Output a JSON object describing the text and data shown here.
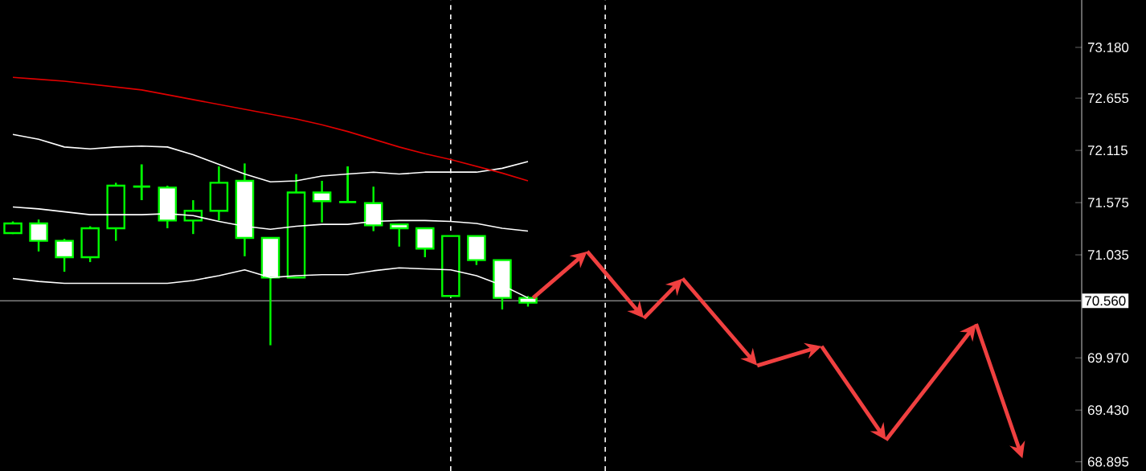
{
  "chart_data": {
    "type": "candlestick",
    "categories": [
      null,
      null,
      null,
      null,
      null,
      null,
      null,
      null,
      null,
      null,
      null,
      null,
      null,
      null,
      null,
      null,
      null,
      null,
      null,
      null,
      null,
      null,
      null,
      null,
      null,
      null,
      null,
      null,
      null,
      null,
      null,
      null,
      null,
      null,
      null,
      null,
      null,
      null,
      null,
      null,
      null,
      null
    ],
    "ohlc": [
      [
        71.26,
        71.38,
        71.25,
        71.36
      ],
      [
        71.36,
        71.4,
        71.07,
        71.18
      ],
      [
        71.18,
        71.2,
        70.86,
        71.01
      ],
      [
        71.01,
        71.33,
        70.96,
        71.31
      ],
      [
        71.31,
        71.78,
        71.18,
        71.75
      ],
      [
        71.74,
        71.97,
        71.6,
        71.74
      ],
      [
        71.73,
        71.75,
        71.31,
        71.39
      ],
      [
        71.39,
        71.6,
        71.25,
        71.49
      ],
      [
        71.49,
        71.95,
        71.39,
        71.78
      ],
      [
        71.8,
        71.98,
        71.02,
        71.21
      ],
      [
        71.21,
        71.21,
        70.1,
        70.8
      ],
      [
        70.8,
        71.87,
        70.8,
        71.68
      ],
      [
        71.68,
        71.8,
        71.37,
        71.59
      ],
      [
        71.58,
        71.95,
        71.58,
        71.58
      ],
      [
        71.57,
        71.74,
        71.28,
        71.34
      ],
      [
        71.35,
        71.35,
        71.12,
        71.31
      ],
      [
        71.31,
        71.31,
        71.01,
        71.1
      ],
      [
        70.61,
        71.23,
        70.61,
        71.23
      ],
      [
        71.23,
        71.23,
        70.93,
        70.98
      ],
      [
        70.98,
        70.98,
        70.47,
        70.59
      ],
      [
        70.59,
        70.61,
        70.5,
        70.54
      ],
      null,
      null,
      null,
      null,
      null,
      null,
      null,
      null,
      null,
      null,
      null,
      null,
      null,
      null,
      null,
      null,
      null,
      null,
      null,
      null,
      null
    ],
    "color": "#00ff00",
    "colors": [
      "#000000",
      "#ffffff",
      "#ffffff",
      "#000000",
      "#000000",
      "#00ff00",
      "#ffffff",
      "#000000",
      "#000000",
      "#ffffff",
      "#ffffff",
      "#000000",
      "#ffffff",
      "#00ff00",
      "#ffffff",
      "#ffffff",
      "#ffffff",
      "#000000",
      "#ffffff",
      "#ffffff",
      "#ffffff",
      null,
      null,
      null,
      null,
      null,
      null,
      null,
      null,
      null,
      null,
      null,
      null,
      null,
      null,
      null,
      null,
      null,
      null,
      null,
      null,
      null
    ],
    "series": [
      {
        "type": "line",
        "color": "#ffffff",
        "values": [
          72.28,
          72.23,
          72.15,
          72.13,
          72.15,
          72.16,
          72.15,
          72.07,
          71.97,
          71.87,
          71.79,
          71.8,
          71.85,
          71.87,
          71.89,
          71.87,
          71.89,
          71.89,
          71.89,
          71.93,
          72.0,
          null,
          null,
          null,
          null,
          null,
          null,
          null,
          null,
          null,
          null,
          null,
          null,
          null,
          null,
          null,
          null,
          null,
          null,
          null,
          null,
          null
        ]
      },
      {
        "type": "line",
        "color": "#ffffff",
        "values": [
          71.53,
          71.51,
          71.48,
          71.45,
          71.45,
          71.45,
          71.46,
          71.44,
          71.38,
          71.33,
          71.3,
          71.33,
          71.35,
          71.35,
          71.38,
          71.39,
          71.39,
          71.38,
          71.36,
          71.31,
          71.28,
          null,
          null,
          null,
          null,
          null,
          null,
          null,
          null,
          null,
          null,
          null,
          null,
          null,
          null,
          null,
          null,
          null,
          null,
          null,
          null,
          null
        ]
      },
      {
        "type": "line",
        "color": "#ffffff",
        "values": [
          70.79,
          70.76,
          70.74,
          70.74,
          70.74,
          70.74,
          70.74,
          70.77,
          70.82,
          70.88,
          70.8,
          70.82,
          70.83,
          70.83,
          70.87,
          70.9,
          70.89,
          70.88,
          70.82,
          70.72,
          70.59,
          null,
          null,
          null,
          null,
          null,
          null,
          null,
          null,
          null,
          null,
          null,
          null,
          null,
          null,
          null,
          null,
          null,
          null,
          null,
          null,
          null
        ]
      },
      {
        "type": "line",
        "color": "#e00000",
        "values": [
          72.87,
          72.85,
          72.83,
          72.8,
          72.77,
          72.74,
          72.69,
          72.64,
          72.59,
          72.54,
          72.49,
          72.44,
          72.38,
          72.31,
          72.23,
          72.15,
          72.08,
          72.02,
          71.95,
          71.88,
          71.8,
          null,
          null,
          null,
          null,
          null,
          null,
          null,
          null,
          null,
          null,
          null,
          null,
          null,
          null,
          null,
          null,
          null,
          null,
          null,
          null,
          null
        ]
      }
    ],
    "ylim": [
      68.8,
      73.67
    ],
    "yticks": [
      {
        "value": 68.895,
        "label": "68.895"
      },
      {
        "value": 69.43,
        "label": "69.430"
      },
      {
        "value": 69.97,
        "label": "69.970"
      },
      {
        "value": 71.035,
        "label": "71.035"
      },
      {
        "value": 71.575,
        "label": "71.575"
      },
      {
        "value": 72.115,
        "label": "72.115"
      },
      {
        "value": 72.655,
        "label": "72.655"
      },
      {
        "value": 73.18,
        "label": "73.180"
      }
    ],
    "tick_labels": "y",
    "ref_lines": [
      {
        "axis": "y",
        "value": 70.56,
        "label": "70.560",
        "color": "#808080",
        "line_style": "solid"
      }
    ]
  }
}
